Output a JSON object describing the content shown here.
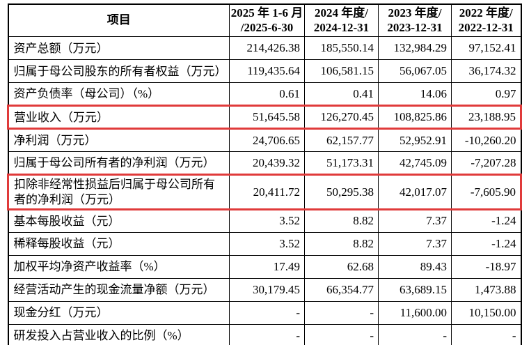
{
  "table": {
    "colors": {
      "border": "#000000",
      "highlight": "#e03a3a",
      "text": "#000000",
      "background": "#ffffff"
    },
    "header": [
      {
        "line1": "项目",
        "line2": ""
      },
      {
        "line1": "2025 年 1-6 月",
        "line2": "/2025-6-30"
      },
      {
        "line1": "2024 年度/",
        "line2": "2024-12-31"
      },
      {
        "line1": "2023 年度/",
        "line2": "2023-12-31"
      },
      {
        "line1": "2022 年度/",
        "line2": "2022-12-31"
      }
    ],
    "rows": [
      {
        "label": "资产总额（万元）",
        "values": [
          "214,426.38",
          "185,550.14",
          "132,984.29",
          "97,152.41"
        ],
        "highlighted": false
      },
      {
        "label": "归属于母公司股东的所有者权益（万元）",
        "values": [
          "119,435.64",
          "106,581.15",
          "56,067.05",
          "36,174.32"
        ],
        "highlighted": false
      },
      {
        "label": "资产负债率（母公司）（%）",
        "values": [
          "0.61",
          "0.41",
          "14.06",
          "0.97"
        ],
        "highlighted": false
      },
      {
        "label": "营业收入（万元）",
        "values": [
          "51,645.58",
          "126,270.45",
          "108,825.86",
          "23,188.95"
        ],
        "highlighted": true
      },
      {
        "label": "净利润（万元）",
        "values": [
          "24,706.65",
          "62,157.77",
          "52,952.91",
          "-10,260.20"
        ],
        "highlighted": false
      },
      {
        "label": "归属于母公司所有者的净利润（万元）",
        "values": [
          "20,439.32",
          "51,173.31",
          "42,745.09",
          "-7,207.28"
        ],
        "highlighted": false
      },
      {
        "label": "扣除非经常性损益后归属于母公司所有者的净利润（万元）",
        "values": [
          "20,411.72",
          "50,295.38",
          "42,017.07",
          "-7,605.90"
        ],
        "highlighted": true
      },
      {
        "label": "基本每股收益（元）",
        "values": [
          "3.52",
          "8.82",
          "7.37",
          "-1.24"
        ],
        "highlighted": false
      },
      {
        "label": "稀释每股收益（元）",
        "values": [
          "3.52",
          "8.82",
          "7.37",
          "-1.24"
        ],
        "highlighted": false
      },
      {
        "label": "加权平均净资产收益率（%）",
        "values": [
          "17.49",
          "62.68",
          "89.43",
          "-18.97"
        ],
        "highlighted": false
      },
      {
        "label": "经营活动产生的现金流量净额（万元）",
        "values": [
          "30,179.45",
          "66,354.77",
          "63,689.15",
          "1,473.88"
        ],
        "highlighted": false
      },
      {
        "label": "现金分红（万元）",
        "values": [
          "-",
          "-",
          "11,600.00",
          "10,150.00"
        ],
        "highlighted": false
      },
      {
        "label": "研发投入占营业收入的比例（%）",
        "values": [
          "-",
          "-",
          "-",
          "-"
        ],
        "highlighted": false
      }
    ]
  }
}
